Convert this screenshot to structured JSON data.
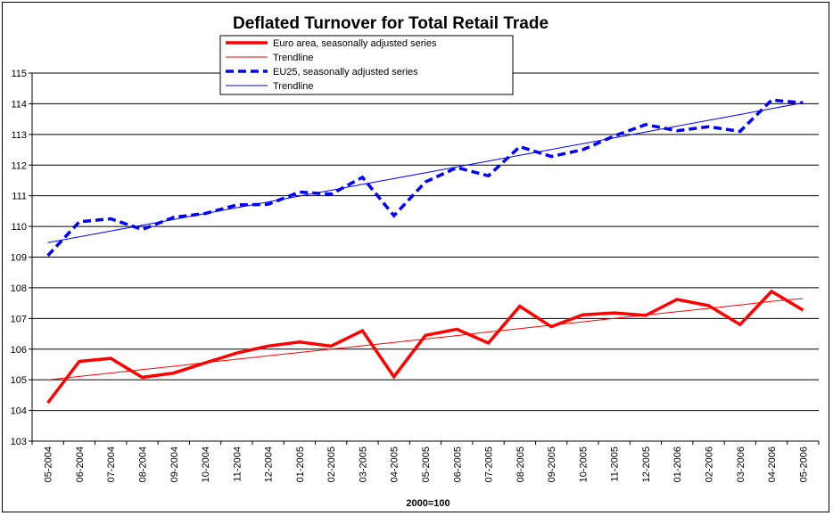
{
  "chart_data": {
    "type": "line",
    "title": "Deflated Turnover for Total Retail Trade",
    "xlabel": "2000=100",
    "ylabel": "",
    "ylim": [
      103,
      115
    ],
    "yticks": [
      103,
      104,
      105,
      106,
      107,
      108,
      109,
      110,
      111,
      112,
      113,
      114,
      115
    ],
    "grid": true,
    "legend_position": "top-center",
    "categories": [
      "05-2004",
      "06-2004",
      "07-2004",
      "08-2004",
      "09-2004",
      "10-2004",
      "11-2004",
      "12-2004",
      "01-2005",
      "02-2005",
      "03-2005",
      "04-2005",
      "05-2005",
      "06-2005",
      "07-2005",
      "08-2005",
      "09-2005",
      "10-2005",
      "11-2005",
      "12-2005",
      "01-2006",
      "02-2006",
      "03-2006",
      "04-2006",
      "05-2006"
    ],
    "series": [
      {
        "name": "Euro area, seasonally adjusted series",
        "color": "#ff0000",
        "style": "solid-thick",
        "values": [
          104.25,
          105.6,
          105.7,
          105.08,
          105.22,
          105.55,
          105.87,
          106.1,
          106.23,
          106.1,
          106.6,
          105.1,
          106.45,
          106.65,
          106.2,
          107.4,
          106.73,
          107.12,
          107.18,
          107.1,
          107.62,
          107.42,
          106.8,
          107.88,
          107.27
        ]
      },
      {
        "name": "Trendline",
        "color": "#ff0000",
        "style": "solid-thin",
        "values": [
          105.0,
          105.11,
          105.22,
          105.33,
          105.44,
          105.56,
          105.67,
          105.78,
          105.89,
          106.0,
          106.11,
          106.22,
          106.33,
          106.44,
          106.56,
          106.67,
          106.78,
          106.89,
          107.0,
          107.11,
          107.22,
          107.33,
          107.44,
          107.56,
          107.65
        ]
      },
      {
        "name": "EU25, seasonally adjusted series",
        "color": "#0000ff",
        "style": "dashed-thick",
        "values": [
          109.05,
          110.15,
          110.25,
          109.9,
          110.3,
          110.42,
          110.7,
          110.72,
          111.12,
          111.05,
          111.6,
          110.35,
          111.45,
          111.92,
          111.65,
          112.6,
          112.28,
          112.5,
          112.95,
          113.32,
          113.12,
          113.25,
          113.1,
          114.12,
          114.03
        ]
      },
      {
        "name": "Trendline",
        "color": "#0000ff",
        "style": "solid-thin",
        "values": [
          109.47,
          109.66,
          109.85,
          110.04,
          110.23,
          110.42,
          110.61,
          110.8,
          110.99,
          111.18,
          111.37,
          111.56,
          111.75,
          111.94,
          112.13,
          112.32,
          112.51,
          112.7,
          112.89,
          113.08,
          113.27,
          113.46,
          113.65,
          113.84,
          114.03
        ]
      }
    ]
  }
}
